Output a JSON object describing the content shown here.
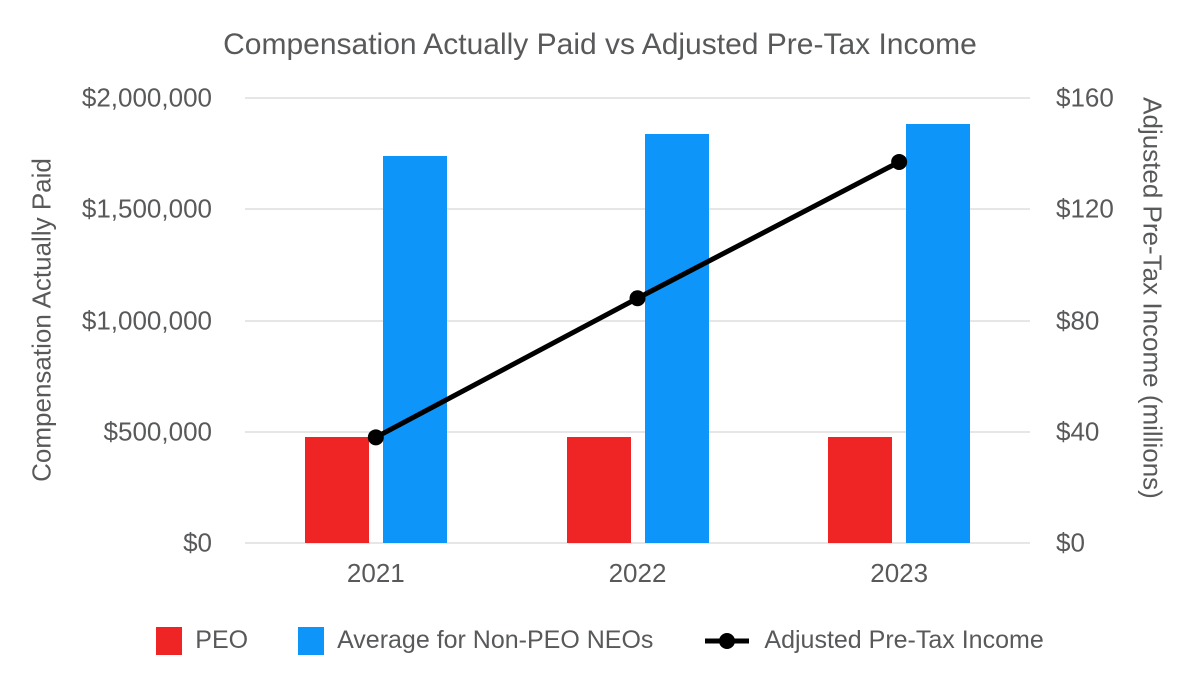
{
  "title": "Compensation Actually Paid vs Adjusted Pre-Tax Income",
  "colors": {
    "peo_bar": "#ee2524",
    "neo_bar": "#0d95fa",
    "line": "#000000",
    "gridline": "#e6e6e6",
    "text": "#58595b"
  },
  "chart_data": {
    "type": "bar",
    "subtype": "grouped bars with overlaid line (dual axis combo)",
    "title": "Compensation Actually Paid vs Adjusted Pre-Tax Income",
    "categories": [
      "2021",
      "2022",
      "2023"
    ],
    "series": [
      {
        "name": "PEO",
        "type": "bar",
        "axis": "left",
        "color": "#ee2524",
        "values": [
          478000,
          478000,
          478000
        ]
      },
      {
        "name": "Average for Non-PEO NEOs",
        "type": "bar",
        "axis": "left",
        "color": "#0d95fa",
        "values": [
          1740000,
          1840000,
          1885000
        ]
      },
      {
        "name": "Adjusted Pre-Tax Income",
        "type": "line",
        "axis": "right",
        "color": "#000000",
        "values": [
          38,
          88,
          137
        ]
      }
    ],
    "left_axis": {
      "label": "Compensation Actually Paid",
      "min": 0,
      "max": 2000000,
      "ticks_bottom_to_top": [
        "$0",
        "$500,000",
        "$1,000,000",
        "$1,500,000",
        "$2,000,000"
      ],
      "tick_values": [
        0,
        500000,
        1000000,
        1500000,
        2000000
      ]
    },
    "right_axis": {
      "label": "Adjusted Pre-Tax Income (millions)",
      "min": 0,
      "max": 160,
      "ticks_bottom_to_top": [
        "$0",
        "$40",
        "$80",
        "$120",
        "$160"
      ],
      "tick_values": [
        0,
        40,
        80,
        120,
        160
      ]
    },
    "grid": true,
    "legend_position": "bottom"
  },
  "legend": {
    "peo_label": "PEO",
    "neo_label": "Average for Non-PEO NEOs",
    "line_label": "Adjusted Pre-Tax Income"
  }
}
